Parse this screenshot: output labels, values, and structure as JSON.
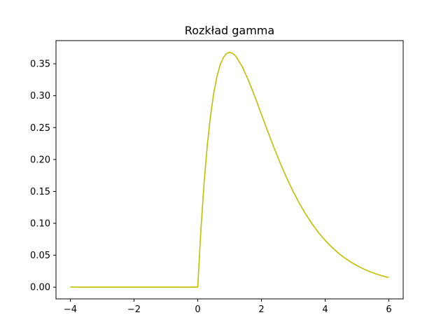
{
  "chart_data": {
    "type": "line",
    "title": "Rozkład gamma",
    "xlabel": "",
    "ylabel": "",
    "xlim": [
      -4.45,
      6.45
    ],
    "ylim": [
      -0.0184,
      0.3863
    ],
    "xticks": [
      -4,
      -2,
      0,
      2,
      4,
      6
    ],
    "xtick_labels": [
      "−4",
      "−2",
      "0",
      "2",
      "4",
      "6"
    ],
    "yticks": [
      0.0,
      0.05,
      0.1,
      0.15,
      0.2,
      0.25,
      0.3,
      0.35
    ],
    "ytick_labels": [
      "0.00",
      "0.05",
      "0.10",
      "0.15",
      "0.20",
      "0.25",
      "0.30",
      "0.35"
    ],
    "grid": false,
    "series": [
      {
        "color": "#bfbf00",
        "x": [
          -4.0,
          -3.5,
          -3.0,
          -2.5,
          -2.0,
          -1.5,
          -1.0,
          -0.5,
          -0.1,
          0.0,
          0.1,
          0.2,
          0.3,
          0.4,
          0.5,
          0.6,
          0.7,
          0.8,
          0.9,
          1.0,
          1.1,
          1.2,
          1.4,
          1.6,
          1.8,
          2.0,
          2.2,
          2.4,
          2.6,
          2.8,
          3.0,
          3.2,
          3.4,
          3.6,
          3.8,
          4.0,
          4.2,
          4.4,
          4.6,
          4.8,
          5.0,
          5.2,
          5.4,
          5.6,
          5.8,
          6.0
        ],
        "y": [
          0.0,
          0.0,
          0.0,
          0.0,
          0.0,
          0.0,
          0.0,
          0.0,
          0.0,
          0.0,
          0.0905,
          0.1637,
          0.2222,
          0.2681,
          0.3033,
          0.3293,
          0.3476,
          0.3595,
          0.3659,
          0.3679,
          0.3662,
          0.3614,
          0.3452,
          0.323,
          0.2975,
          0.2707,
          0.2438,
          0.2177,
          0.1931,
          0.1703,
          0.1494,
          0.1304,
          0.1135,
          0.0984,
          0.085,
          0.0733,
          0.063,
          0.054,
          0.0462,
          0.0395,
          0.0337,
          0.0287,
          0.0244,
          0.0207,
          0.0176,
          0.0149
        ]
      }
    ]
  }
}
